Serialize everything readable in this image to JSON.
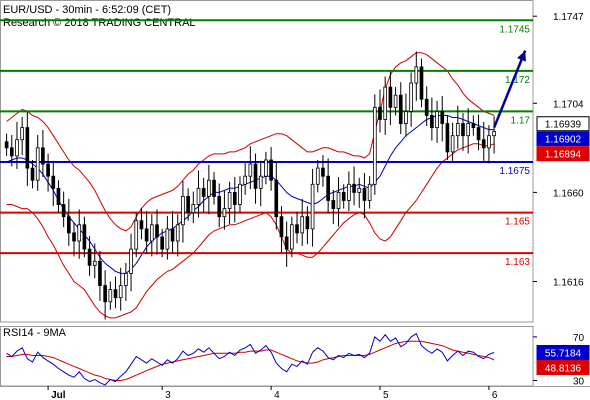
{
  "header": {
    "title": "EUR/USD - 30min - 6:52:09 (CET)",
    "copyright": "Research © 2018 TRADING CENTRAL"
  },
  "rsi_label": "RSI14 - 9MA",
  "colors": {
    "resistance": "#008000",
    "pivot": "#0000cc",
    "support": "#dd0000",
    "candle": "#000000",
    "bollinger": "#cc0000",
    "moving_average": "#0000cc",
    "forecast_arrow": "#000099",
    "rsi_line": "#0000cc",
    "rsi_ma": "#cc0000",
    "grid": "#cccccc"
  },
  "chart_data": [
    {
      "type": "candlestick",
      "title": "",
      "symbol": "EUR/USD",
      "timeframe": "30min",
      "ylim": [
        1.1596,
        1.1755
      ],
      "y_ticks": [
        {
          "value": 1.1747,
          "label": "1.1747"
        },
        {
          "value": 1.1704,
          "label": "1.1704"
        },
        {
          "value": 1.166,
          "label": "1.1660"
        },
        {
          "value": 1.1616,
          "label": "1.1616"
        }
      ],
      "x_ticks": [
        {
          "index": 8,
          "label": "Jul"
        },
        {
          "index": 30,
          "label": "3"
        },
        {
          "index": 51,
          "label": "4"
        },
        {
          "index": 72,
          "label": "5"
        },
        {
          "index": 93,
          "label": "6"
        }
      ],
      "levels": [
        {
          "name": "resistance",
          "value": 1.1745,
          "label": "1.1745",
          "color": "#008000"
        },
        {
          "name": "resistance",
          "value": 1.172,
          "label": "1.172",
          "color": "#008000"
        },
        {
          "name": "resistance",
          "value": 1.17,
          "label": "1.17",
          "color": "#008000"
        },
        {
          "name": "pivot",
          "value": 1.1675,
          "label": "1.1675",
          "color": "#0000cc"
        },
        {
          "name": "support",
          "value": 1.165,
          "label": "1.165",
          "color": "#dd0000"
        },
        {
          "name": "support",
          "value": 1.163,
          "label": "1.163",
          "color": "#dd0000"
        }
      ],
      "price_tags": [
        {
          "value": 1.16939,
          "label": "1.16939",
          "bg": "#ffffff",
          "fg": "#000000"
        },
        {
          "value": 1.16902,
          "label": "1.16902",
          "bg": "#0000cc",
          "fg": "#ffffff"
        },
        {
          "value": 1.16894,
          "label": "1.16894",
          "bg": "#dd0000",
          "fg": "#ffffff"
        }
      ],
      "close": [
        1.1682,
        1.1678,
        1.1686,
        1.1692,
        1.1672,
        1.1666,
        1.1682,
        1.1674,
        1.1668,
        1.1662,
        1.1654,
        1.1648,
        1.164,
        1.1636,
        1.1644,
        1.1632,
        1.1624,
        1.1626,
        1.1614,
        1.1606,
        1.1612,
        1.1608,
        1.1614,
        1.162,
        1.1632,
        1.1646,
        1.1642,
        1.1636,
        1.1644,
        1.1638,
        1.1632,
        1.1642,
        1.1636,
        1.1644,
        1.1658,
        1.165,
        1.1654,
        1.1662,
        1.1658,
        1.1666,
        1.1658,
        1.1648,
        1.1652,
        1.166,
        1.1654,
        1.1664,
        1.1668,
        1.1674,
        1.1662,
        1.1668,
        1.1676,
        1.1666,
        1.1648,
        1.1638,
        1.1632,
        1.1644,
        1.164,
        1.1648,
        1.1642,
        1.1664,
        1.1672,
        1.1668,
        1.1656,
        1.1652,
        1.166,
        1.1656,
        1.1664,
        1.166,
        1.1662,
        1.1656,
        1.1664,
        1.1702,
        1.1696,
        1.1712,
        1.1702,
        1.1708,
        1.1694,
        1.17,
        1.1714,
        1.1722,
        1.1706,
        1.1698,
        1.1692,
        1.17,
        1.1694,
        1.168,
        1.1688,
        1.1694,
        1.1688,
        1.1694,
        1.1692,
        1.1686,
        1.1682,
        1.1688,
        1.169
      ],
      "bollinger_upper": [
        1.1695,
        1.1697,
        1.1699,
        1.1701,
        1.17,
        1.1698,
        1.1697,
        1.1695,
        1.1692,
        1.1688,
        1.1684,
        1.168,
        1.1676,
        1.1673,
        1.1671,
        1.1668,
        1.1665,
        1.1661,
        1.1656,
        1.1651,
        1.1647,
        1.1644,
        1.1642,
        1.1641,
        1.1643,
        1.1648,
        1.1652,
        1.1655,
        1.1657,
        1.1658,
        1.1659,
        1.166,
        1.1661,
        1.1663,
        1.1666,
        1.1669,
        1.1671,
        1.1674,
        1.1676,
        1.1678,
        1.1679,
        1.1679,
        1.1679,
        1.168,
        1.168,
        1.1681,
        1.1682,
        1.1684,
        1.1685,
        1.1686,
        1.1687,
        1.1688,
        1.1689,
        1.1689,
        1.1688,
        1.1686,
        1.1684,
        1.1682,
        1.168,
        1.168,
        1.1681,
        1.1682,
        1.1682,
        1.1681,
        1.168,
        1.168,
        1.1679,
        1.1678,
        1.1678,
        1.1677,
        1.1679,
        1.169,
        1.17,
        1.1711,
        1.1718,
        1.1722,
        1.1724,
        1.1725,
        1.1727,
        1.1729,
        1.1729,
        1.1728,
        1.1726,
        1.1724,
        1.1722,
        1.172,
        1.1716,
        1.1713,
        1.1709,
        1.1706,
        1.1704,
        1.1702,
        1.17,
        1.1699,
        1.1698
      ],
      "bollinger_lower": [
        1.1654,
        1.1654,
        1.1653,
        1.1652,
        1.1652,
        1.165,
        1.1647,
        1.1643,
        1.1638,
        1.1634,
        1.1629,
        1.1624,
        1.162,
        1.1616,
        1.1614,
        1.1612,
        1.1608,
        1.1604,
        1.1601,
        1.1599,
        1.1598,
        1.1598,
        1.1599,
        1.16,
        1.1601,
        1.1603,
        1.1607,
        1.1611,
        1.1614,
        1.1617,
        1.1619,
        1.1621,
        1.1622,
        1.1624,
        1.1626,
        1.1628,
        1.163,
        1.1633,
        1.1636,
        1.1639,
        1.1641,
        1.1642,
        1.1643,
        1.1644,
        1.1644,
        1.1645,
        1.1646,
        1.1647,
        1.1648,
        1.1649,
        1.165,
        1.1648,
        1.1644,
        1.1638,
        1.1632,
        1.163,
        1.163,
        1.1629,
        1.1628,
        1.1628,
        1.163,
        1.1633,
        1.1636,
        1.1639,
        1.1642,
        1.1645,
        1.1647,
        1.1649,
        1.165,
        1.1649,
        1.1645,
        1.164,
        1.1637,
        1.1636,
        1.1638,
        1.1642,
        1.1646,
        1.165,
        1.1653,
        1.1656,
        1.166,
        1.1664,
        1.1668,
        1.1672,
        1.1675,
        1.1677,
        1.1679,
        1.1681,
        1.1682,
        1.1683,
        1.1684,
        1.1684,
        1.1683,
        1.1683,
        1.1684
      ],
      "moving_average": [
        1.1675,
        1.1676,
        1.1677,
        1.1677,
        1.1676,
        1.1674,
        1.1672,
        1.1669,
        1.1665,
        1.1661,
        1.1656,
        1.1652,
        1.1648,
        1.1645,
        1.1642,
        1.1639,
        1.1636,
        1.1632,
        1.1628,
        1.1625,
        1.1623,
        1.1621,
        1.162,
        1.162,
        1.1622,
        1.1625,
        1.1629,
        1.1633,
        1.1636,
        1.1638,
        1.164,
        1.1641,
        1.1642,
        1.1644,
        1.1646,
        1.1648,
        1.1651,
        1.1653,
        1.1656,
        1.1658,
        1.166,
        1.166,
        1.1661,
        1.1662,
        1.1662,
        1.1663,
        1.1664,
        1.1665,
        1.1666,
        1.1667,
        1.1668,
        1.1668,
        1.1666,
        1.1663,
        1.166,
        1.1658,
        1.1657,
        1.1656,
        1.1655,
        1.1654,
        1.1655,
        1.1657,
        1.1659,
        1.166,
        1.1661,
        1.1662,
        1.1663,
        1.1663,
        1.1664,
        1.1663,
        1.1662,
        1.1665,
        1.1668,
        1.1673,
        1.1678,
        1.1682,
        1.1685,
        1.1688,
        1.169,
        1.1692,
        1.1694,
        1.1696,
        1.1697,
        1.1698,
        1.1698,
        1.1698,
        1.1697,
        1.1697,
        1.1696,
        1.1695,
        1.1694,
        1.1693,
        1.1692,
        1.1691,
        1.1691
      ],
      "forecast": {
        "from_index": 94,
        "from_value": 1.1692,
        "to_index": 100,
        "to_value": 1.173
      }
    },
    {
      "type": "line",
      "title": "",
      "name": "RSI14 - 9MA",
      "ylim": [
        25,
        80
      ],
      "y_ticks": [
        {
          "value": 70,
          "label": "70"
        },
        {
          "value": 30,
          "label": "30"
        }
      ],
      "value_tags": [
        {
          "value": 55.7184,
          "label": "55.7184",
          "bg": "#0000cc",
          "fg": "#ffffff"
        },
        {
          "value": 48.8136,
          "label": "48.8136",
          "bg": "#dd0000",
          "fg": "#ffffff"
        }
      ],
      "series": [
        {
          "name": "RSI14",
          "values": [
            55,
            52,
            57,
            60,
            50,
            47,
            56,
            51,
            48,
            45,
            41,
            38,
            35,
            33,
            38,
            32,
            29,
            31,
            28,
            26,
            31,
            29,
            34,
            38,
            45,
            52,
            49,
            46,
            50,
            47,
            44,
            49,
            46,
            50,
            57,
            53,
            55,
            59,
            56,
            60,
            55,
            50,
            52,
            56,
            53,
            58,
            60,
            63,
            55,
            58,
            62,
            56,
            46,
            41,
            38,
            45,
            43,
            48,
            45,
            56,
            60,
            57,
            51,
            49,
            53,
            51,
            55,
            53,
            54,
            51,
            55,
            70,
            66,
            72,
            66,
            69,
            61,
            64,
            70,
            73,
            62,
            58,
            55,
            59,
            56,
            48,
            53,
            57,
            53,
            57,
            56,
            52,
            50,
            54,
            55.72
          ]
        },
        {
          "name": "9MA",
          "values": [
            52,
            52,
            53,
            54,
            54,
            53,
            53,
            53,
            52,
            51,
            49,
            47,
            45,
            43,
            41,
            39,
            37,
            35,
            34,
            32,
            31,
            30,
            30,
            31,
            33,
            35,
            37,
            39,
            41,
            43,
            45,
            46,
            47,
            48,
            49,
            50,
            51,
            52,
            53,
            54,
            55,
            55,
            55,
            55,
            55,
            56,
            56,
            57,
            57,
            57,
            58,
            58,
            56,
            54,
            52,
            50,
            48,
            47,
            46,
            46,
            47,
            49,
            50,
            51,
            52,
            53,
            53,
            53,
            53,
            53,
            54,
            56,
            58,
            60,
            62,
            64,
            65,
            66,
            66,
            66,
            66,
            65,
            64,
            63,
            62,
            60,
            58,
            57,
            56,
            55,
            54,
            53,
            52,
            51,
            48.81
          ]
        }
      ]
    }
  ]
}
